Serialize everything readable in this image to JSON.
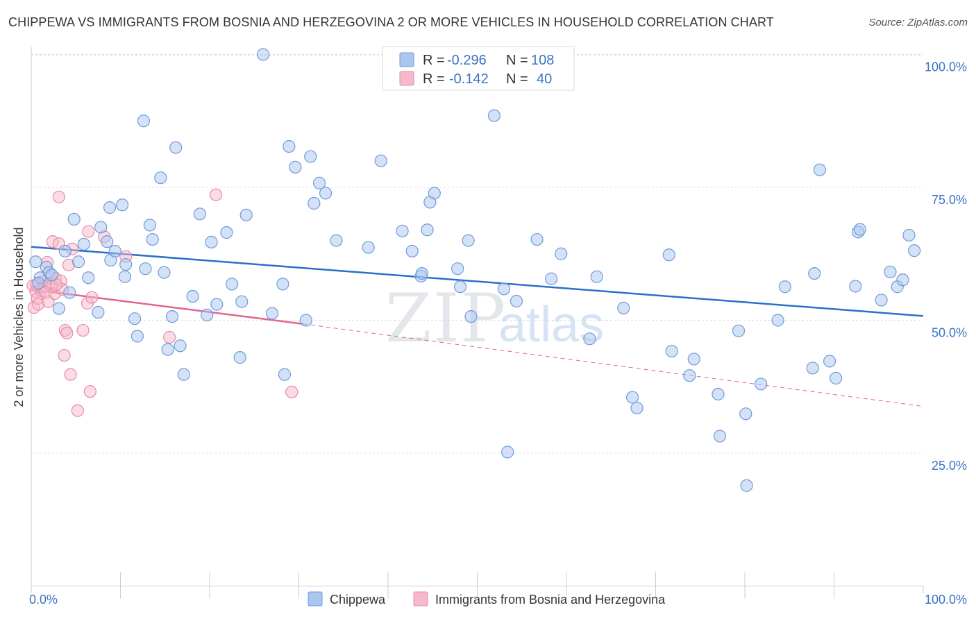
{
  "title": "CHIPPEWA VS IMMIGRANTS FROM BOSNIA AND HERZEGOVINA 2 OR MORE VEHICLES IN HOUSEHOLD CORRELATION CHART",
  "source": "Source: ZipAtlas.com",
  "watermark": {
    "zip": "ZIP",
    "atlas": "atlas"
  },
  "colors": {
    "chippewa_fill": "#a9c6ef",
    "chippewa_stroke": "#6f9bd8",
    "chippewa_line": "#2a6fcc",
    "bosnia_fill": "#f6b9cc",
    "bosnia_stroke": "#e98aa8",
    "bosnia_line": "#e0648e",
    "tick_label": "#3c72c4"
  },
  "legend": {
    "rows": [
      {
        "r_label": "R =",
        "r_value": "-0.296",
        "n_label": "N =",
        "n_value": "108"
      },
      {
        "r_label": "R =",
        "r_value": "-0.142",
        "n_label": "N =",
        "n_value": "40"
      }
    ]
  },
  "chart_data": {
    "type": "scatter",
    "title": "CHIPPEWA VS IMMIGRANTS FROM BOSNIA AND HERZEGOVINA 2 OR MORE VEHICLES IN HOUSEHOLD CORRELATION CHART",
    "xlabel": "",
    "ylabel": "2 or more Vehicles in Household",
    "xlim": [
      0,
      100
    ],
    "ylim": [
      0,
      105
    ],
    "x_tick_labels": [
      "0.0%",
      "100.0%"
    ],
    "y_ticks": [
      25,
      50,
      75,
      100
    ],
    "y_tick_labels": [
      "25.0%",
      "50.0%",
      "75.0%",
      "100.0%"
    ],
    "grid": "horizontal dashed",
    "legend_position": "top-center",
    "series": [
      {
        "name": "Chippewa",
        "trend": {
          "x0": 0,
          "y0": 63.8,
          "x1": 100,
          "y1": 50.8
        },
        "points": [
          [
            0.5,
            61
          ],
          [
            1,
            58
          ],
          [
            1.7,
            60
          ],
          [
            2,
            59
          ],
          [
            2.3,
            58.5
          ],
          [
            3.1,
            52.2
          ],
          [
            3.8,
            63
          ],
          [
            4.3,
            55.2
          ],
          [
            4.8,
            69
          ],
          [
            5.3,
            61
          ],
          [
            5.9,
            64.3
          ],
          [
            6.4,
            58
          ],
          [
            7.5,
            51.5
          ],
          [
            7.8,
            67.5
          ],
          [
            8.5,
            64.8
          ],
          [
            8.8,
            71.2
          ],
          [
            8.9,
            61.3
          ],
          [
            9.4,
            63
          ],
          [
            10.2,
            71.7
          ],
          [
            10.5,
            58.2
          ],
          [
            10.6,
            60.5
          ],
          [
            11.6,
            50.3
          ],
          [
            11.9,
            47
          ],
          [
            12.6,
            87.5
          ],
          [
            12.8,
            59.7
          ],
          [
            13.3,
            67.9
          ],
          [
            13.6,
            65.2
          ],
          [
            14.5,
            76.8
          ],
          [
            14.9,
            59
          ],
          [
            15.3,
            44.5
          ],
          [
            15.8,
            50.7
          ],
          [
            16.2,
            82.5
          ],
          [
            16.7,
            45.2
          ],
          [
            17.1,
            39.8
          ],
          [
            18.1,
            54.5
          ],
          [
            18.9,
            70
          ],
          [
            19.7,
            51
          ],
          [
            20.2,
            64.7
          ],
          [
            20.8,
            53
          ],
          [
            21.9,
            66.5
          ],
          [
            22.5,
            56.8
          ],
          [
            23.4,
            43
          ],
          [
            23.6,
            53.5
          ],
          [
            24.1,
            69.8
          ],
          [
            26,
            100
          ],
          [
            27,
            51.3
          ],
          [
            28.2,
            56.8
          ],
          [
            28.4,
            39.8
          ],
          [
            28.9,
            82.7
          ],
          [
            29.6,
            78.8
          ],
          [
            30.8,
            50
          ],
          [
            31.3,
            80.8
          ],
          [
            31.7,
            72
          ],
          [
            32.3,
            75.8
          ],
          [
            33,
            73.9
          ],
          [
            34.2,
            65
          ],
          [
            37.8,
            63.7
          ],
          [
            39.2,
            80
          ],
          [
            41.6,
            66.8
          ],
          [
            42.7,
            63
          ],
          [
            43.7,
            58.3
          ],
          [
            43.8,
            58.8
          ],
          [
            44.4,
            67
          ],
          [
            44.7,
            72.2
          ],
          [
            45.2,
            73.9
          ],
          [
            47.8,
            59.7
          ],
          [
            48.1,
            56.3
          ],
          [
            49,
            65
          ],
          [
            49.3,
            50.7
          ],
          [
            51.9,
            88.5
          ],
          [
            53,
            55.9
          ],
          [
            53.4,
            25.2
          ],
          [
            54.4,
            53.6
          ],
          [
            56.7,
            65.2
          ],
          [
            58.3,
            57.8
          ],
          [
            59.4,
            62.5
          ],
          [
            62.6,
            46.5
          ],
          [
            63.4,
            58.2
          ],
          [
            66.4,
            52.3
          ],
          [
            67.4,
            35.5
          ],
          [
            67.9,
            33.5
          ],
          [
            71.5,
            62.3
          ],
          [
            71.8,
            44.2
          ],
          [
            73.8,
            39.6
          ],
          [
            74.3,
            42.7
          ],
          [
            77,
            36.1
          ],
          [
            77.2,
            28.2
          ],
          [
            79.3,
            48
          ],
          [
            80.1,
            32.4
          ],
          [
            80.2,
            18.9
          ],
          [
            81.8,
            38
          ],
          [
            83.7,
            50
          ],
          [
            84.5,
            56.3
          ],
          [
            87.6,
            41
          ],
          [
            87.8,
            58.8
          ],
          [
            88.4,
            78.3
          ],
          [
            89.5,
            42.3
          ],
          [
            90.2,
            39.1
          ],
          [
            92.4,
            56.4
          ],
          [
            92.7,
            66.6
          ],
          [
            92.9,
            67.1
          ],
          [
            95.3,
            53.8
          ],
          [
            96.3,
            59.1
          ],
          [
            97.1,
            56.3
          ],
          [
            97.7,
            57.6
          ],
          [
            98.4,
            66
          ],
          [
            99,
            63.1
          ],
          [
            0.8,
            57
          ]
        ]
      },
      {
        "name": "Immigrants from Bosnia and Herzegovina",
        "trend": {
          "x0": 0,
          "y0": 55.8,
          "x1": 30.5,
          "y1": 49.3,
          "dash_x1": 100,
          "dash_y1": 33.8
        },
        "points": [
          [
            0.2,
            56.5
          ],
          [
            0.3,
            52.4
          ],
          [
            0.5,
            55.4
          ],
          [
            0.7,
            54.1
          ],
          [
            0.8,
            53
          ],
          [
            1.1,
            55.6
          ],
          [
            1.2,
            56.2
          ],
          [
            1.3,
            57.3
          ],
          [
            1.5,
            56.4
          ],
          [
            1.8,
            60.9
          ],
          [
            2,
            56.9
          ],
          [
            2.3,
            56.5
          ],
          [
            2.4,
            64.8
          ],
          [
            2.6,
            55
          ],
          [
            2.7,
            57.9
          ],
          [
            3.1,
            73.2
          ],
          [
            3.1,
            64.4
          ],
          [
            3.3,
            57.4
          ],
          [
            3.5,
            55.8
          ],
          [
            3.7,
            43.4
          ],
          [
            3.8,
            48.1
          ],
          [
            4,
            47.6
          ],
          [
            4.2,
            60.4
          ],
          [
            4.4,
            39.8
          ],
          [
            4.6,
            63.4
          ],
          [
            5.2,
            33
          ],
          [
            5.8,
            48.1
          ],
          [
            6.3,
            53.2
          ],
          [
            6.4,
            66.7
          ],
          [
            6.6,
            36.6
          ],
          [
            6.8,
            54.3
          ],
          [
            8.2,
            65.7
          ],
          [
            10.6,
            62
          ],
          [
            15.5,
            46.8
          ],
          [
            20.7,
            73.6
          ],
          [
            29.2,
            36.5
          ],
          [
            2.8,
            56.7
          ],
          [
            1.6,
            55.2
          ],
          [
            0.6,
            56.7
          ],
          [
            1.9,
            53.5
          ]
        ]
      }
    ]
  },
  "bottom_legend": {
    "chippewa": "Chippewa",
    "bosnia": "Immigrants from Bosnia and Herzegovina"
  }
}
